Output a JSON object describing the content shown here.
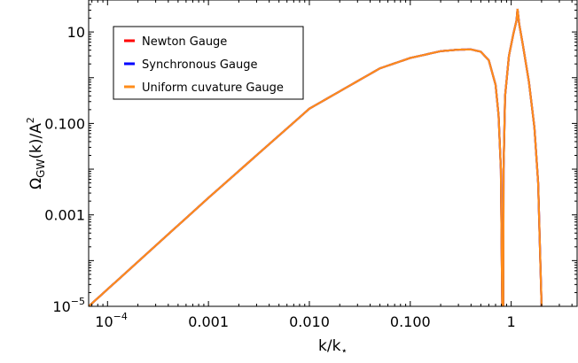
{
  "chart_data": {
    "type": "line",
    "xscale": "log",
    "yscale": "log",
    "xlabel": "k/k",
    "xlabel_sub": "⋆",
    "ylabel": "Ω",
    "ylabel_sub": "GW",
    "ylabel_tail": "(k)/A",
    "ylabel_sup": "2",
    "xlim": [
      6.5e-05,
      4.5
    ],
    "ylim": [
      1e-05,
      50
    ],
    "grid": false,
    "legend_position": "upper-left",
    "x_ticks": [
      {
        "value": 0.0001,
        "label": "10",
        "sup": "−4"
      },
      {
        "value": 0.001,
        "label": "0.001"
      },
      {
        "value": 0.01,
        "label": "0.010"
      },
      {
        "value": 0.1,
        "label": "0.100"
      },
      {
        "value": 1,
        "label": "1"
      }
    ],
    "y_ticks": [
      {
        "value": 1e-05,
        "label": "10",
        "sup": "−5"
      },
      {
        "value": 0.001,
        "label": "0.001"
      },
      {
        "value": 0.1,
        "label": "0.100"
      },
      {
        "value": 10,
        "label": "10"
      }
    ],
    "series": [
      {
        "name": "Newton Gauge",
        "color": "#ff0000",
        "segments": [
          [
            [
              6.5e-05,
              1e-05
            ],
            [
              0.0001,
              2.36e-05
            ],
            [
              0.001,
              0.00236
            ],
            [
              0.01,
              0.21
            ],
            [
              0.05,
              1.6
            ],
            [
              0.1,
              2.7
            ],
            [
              0.2,
              3.8
            ],
            [
              0.3,
              4.1
            ],
            [
              0.4,
              4.15
            ],
            [
              0.5,
              3.7
            ],
            [
              0.6,
              2.4
            ],
            [
              0.7,
              0.7
            ],
            [
              0.75,
              0.15
            ],
            [
              0.79,
              0.01
            ],
            [
              0.815,
              1e-05
            ]
          ],
          [
            [
              0.835,
              1e-05
            ],
            [
              0.84,
              0.01
            ],
            [
              0.87,
              0.4
            ],
            [
              0.95,
              3.0
            ],
            [
              1.05,
              9
            ],
            [
              1.13,
              18
            ],
            [
              1.155,
              32
            ]
          ],
          [
            [
              1.155,
              32
            ],
            [
              1.2,
              15
            ],
            [
              1.3,
              5.5
            ],
            [
              1.5,
              0.8
            ],
            [
              1.7,
              0.08
            ],
            [
              1.85,
              0.005
            ],
            [
              2.0,
              1e-05
            ]
          ]
        ]
      },
      {
        "name": "Synchronous Gauge",
        "color": "#0000ff",
        "segments": [
          [
            [
              6.5e-05,
              1e-05
            ],
            [
              0.0001,
              2.36e-05
            ],
            [
              0.001,
              0.00236
            ],
            [
              0.01,
              0.21
            ],
            [
              0.05,
              1.6
            ],
            [
              0.1,
              2.7
            ],
            [
              0.2,
              3.8
            ],
            [
              0.3,
              4.1
            ],
            [
              0.4,
              4.15
            ],
            [
              0.5,
              3.7
            ],
            [
              0.6,
              2.4
            ],
            [
              0.7,
              0.7
            ],
            [
              0.75,
              0.15
            ],
            [
              0.79,
              0.01
            ],
            [
              0.815,
              1e-05
            ]
          ],
          [
            [
              0.835,
              1e-05
            ],
            [
              0.84,
              0.01
            ],
            [
              0.87,
              0.4
            ],
            [
              0.95,
              3.0
            ],
            [
              1.05,
              9
            ],
            [
              1.13,
              18
            ],
            [
              1.155,
              32
            ]
          ],
          [
            [
              1.155,
              32
            ],
            [
              1.2,
              15
            ],
            [
              1.3,
              5.5
            ],
            [
              1.5,
              0.8
            ],
            [
              1.7,
              0.08
            ],
            [
              1.85,
              0.005
            ],
            [
              2.0,
              1e-05
            ]
          ]
        ]
      },
      {
        "name": "Uniform cuvature Gauge",
        "color": "#ff8c1a",
        "segments": [
          [
            [
              6.5e-05,
              1e-05
            ],
            [
              0.0001,
              2.36e-05
            ],
            [
              0.001,
              0.00236
            ],
            [
              0.01,
              0.21
            ],
            [
              0.05,
              1.6
            ],
            [
              0.1,
              2.7
            ],
            [
              0.2,
              3.8
            ],
            [
              0.3,
              4.1
            ],
            [
              0.4,
              4.15
            ],
            [
              0.5,
              3.7
            ],
            [
              0.6,
              2.4
            ],
            [
              0.7,
              0.7
            ],
            [
              0.75,
              0.15
            ],
            [
              0.79,
              0.01
            ],
            [
              0.815,
              1e-05
            ]
          ],
          [
            [
              0.835,
              1e-05
            ],
            [
              0.84,
              0.01
            ],
            [
              0.87,
              0.4
            ],
            [
              0.95,
              3.0
            ],
            [
              1.05,
              9
            ],
            [
              1.13,
              18
            ],
            [
              1.155,
              32
            ]
          ],
          [
            [
              1.155,
              32
            ],
            [
              1.2,
              15
            ],
            [
              1.3,
              5.5
            ],
            [
              1.5,
              0.8
            ],
            [
              1.7,
              0.08
            ],
            [
              1.85,
              0.005
            ],
            [
              2.0,
              1e-05
            ]
          ]
        ]
      }
    ]
  }
}
